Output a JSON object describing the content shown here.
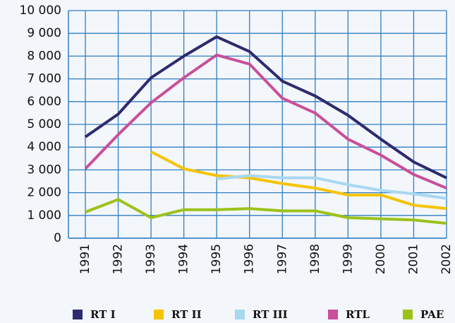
{
  "chart_data": {
    "type": "line",
    "categories": [
      "1991",
      "1992",
      "1993",
      "1994",
      "1995",
      "1996",
      "1997",
      "1998",
      "1999",
      "2000",
      "2001",
      "2002"
    ],
    "series": [
      {
        "name": "RT I",
        "color": "#2e2a6e",
        "values": [
          4450,
          5450,
          7050,
          8000,
          8850,
          8200,
          6900,
          6250,
          5400,
          4350,
          3350,
          2650
        ]
      },
      {
        "name": "RT II",
        "color": "#f5c400",
        "values": [
          null,
          null,
          3800,
          3050,
          2750,
          2650,
          2400,
          2200,
          1900,
          1900,
          1450,
          1300
        ]
      },
      {
        "name": "RT III",
        "color": "#a8d8f0",
        "values": [
          null,
          null,
          null,
          null,
          2600,
          2750,
          2650,
          2650,
          2350,
          2100,
          1950,
          1750
        ]
      },
      {
        "name": "RTL",
        "color": "#c94f9a",
        "values": [
          3050,
          4550,
          5950,
          7050,
          8050,
          7650,
          6150,
          5500,
          4350,
          3650,
          2800,
          2200
        ]
      },
      {
        "name": "PAE",
        "color": "#9cc21a",
        "values": [
          1150,
          1700,
          900,
          1250,
          1250,
          1300,
          1200,
          1200,
          900,
          850,
          800,
          650
        ]
      }
    ],
    "ylim": [
      0,
      10000
    ],
    "yticks": [
      0,
      {
        "value": 1000,
        "label": "1 000"
      },
      {
        "value": 2000,
        "label": "2 000"
      },
      {
        "value": 3000,
        "label": "3 000"
      },
      {
        "value": 4000,
        "label": "4 000"
      },
      {
        "value": 5000,
        "label": "5 000"
      },
      {
        "value": 6000,
        "label": "6 000"
      },
      {
        "value": 7000,
        "label": "7 000"
      },
      {
        "value": 8000,
        "label": "8 000"
      },
      {
        "value": 9000,
        "label": "9 000"
      },
      {
        "value": 10000,
        "label": "10 000"
      }
    ],
    "grid": true,
    "legend": "bottom"
  }
}
